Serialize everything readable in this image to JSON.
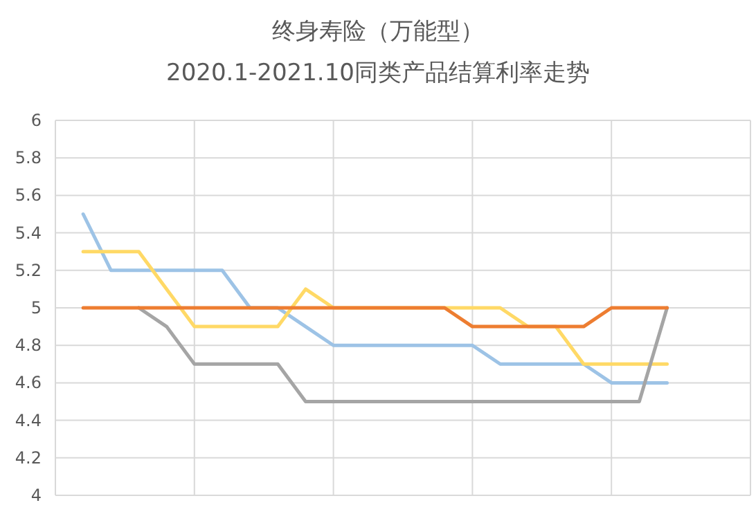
{
  "chart_data": {
    "type": "line",
    "title": "终身寿险（万能型）",
    "subtitle": "2020.1-2021.10同类产品结算利率走势",
    "categories": [
      null,
      null,
      null,
      null,
      null,
      null,
      null,
      null,
      null,
      null,
      null,
      null,
      null,
      null,
      null,
      null,
      null,
      null,
      null,
      null,
      null,
      null
    ],
    "ylim": [
      4,
      6
    ],
    "yticks": [
      4,
      4.2,
      4.4,
      4.6,
      4.8,
      5,
      5.2,
      5.4,
      5.6,
      5.8,
      6
    ],
    "grid": true,
    "tick_labels": "y",
    "line_style": "solid",
    "marker": "none",
    "series": [
      {
        "color": "#9dc3e6",
        "values": [
          5.5,
          5.2,
          5.2,
          5.2,
          5.2,
          5.2,
          5.0,
          5.0,
          4.9,
          4.8,
          4.8,
          4.8,
          4.8,
          4.8,
          4.8,
          4.7,
          4.7,
          4.7,
          4.7,
          4.6,
          4.6,
          4.6
        ]
      },
      {
        "color": "#ffd966",
        "values": [
          5.3,
          5.3,
          5.3,
          5.1,
          4.9,
          4.9,
          4.9,
          4.9,
          5.1,
          5.0,
          5.0,
          5.0,
          5.0,
          5.0,
          5.0,
          5.0,
          4.9,
          4.9,
          4.7,
          4.7,
          4.7,
          4.7
        ]
      },
      {
        "color": "#a5a5a5",
        "values": [
          null,
          null,
          5.0,
          4.9,
          4.7,
          4.7,
          4.7,
          4.7,
          4.5,
          4.5,
          4.5,
          4.5,
          4.5,
          4.5,
          4.5,
          4.5,
          4.5,
          4.5,
          4.5,
          4.5,
          4.5,
          5.0
        ]
      },
      {
        "color": "#ed7d31",
        "values": [
          5.0,
          5.0,
          5.0,
          5.0,
          5.0,
          5.0,
          5.0,
          5.0,
          5.0,
          5.0,
          5.0,
          5.0,
          5.0,
          5.0,
          4.9,
          4.9,
          4.9,
          4.9,
          4.9,
          5.0,
          5.0,
          5.0
        ]
      }
    ]
  }
}
